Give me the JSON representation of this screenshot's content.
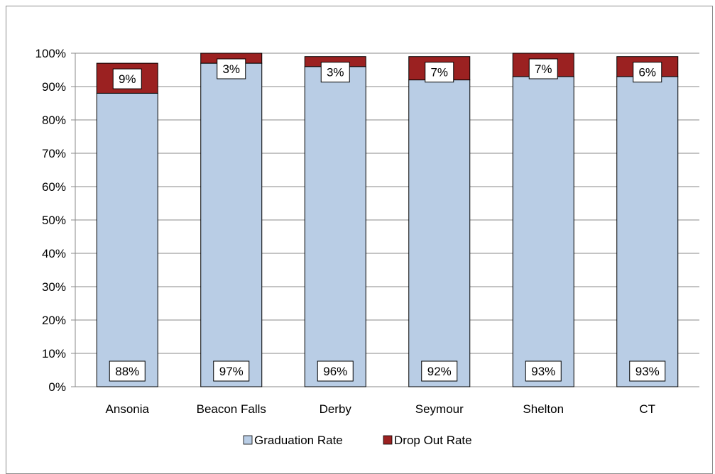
{
  "chart_data": {
    "type": "bar",
    "stacked": true,
    "categories": [
      "Ansonia",
      "Beacon Falls",
      "Derby",
      "Seymour",
      "Shelton",
      "CT"
    ],
    "series": [
      {
        "name": "Graduation Rate",
        "values": [
          88,
          97,
          96,
          92,
          93,
          93
        ],
        "labels": [
          "88%",
          "97%",
          "96%",
          "92%",
          "93%",
          "93%"
        ],
        "color": "#b9cde5"
      },
      {
        "name": "Drop Out Rate",
        "values": [
          9,
          3,
          3,
          7,
          7,
          6
        ],
        "labels": [
          "9%",
          "3%",
          "3%",
          "7%",
          "7%",
          "6%"
        ],
        "color": "#9b2121"
      }
    ],
    "ylim": [
      0,
      100
    ],
    "yticks": [
      "0%",
      "10%",
      "20%",
      "30%",
      "40%",
      "50%",
      "60%",
      "70%",
      "80%",
      "90%",
      "100%"
    ],
    "grid": true,
    "legend_position": "bottom"
  }
}
